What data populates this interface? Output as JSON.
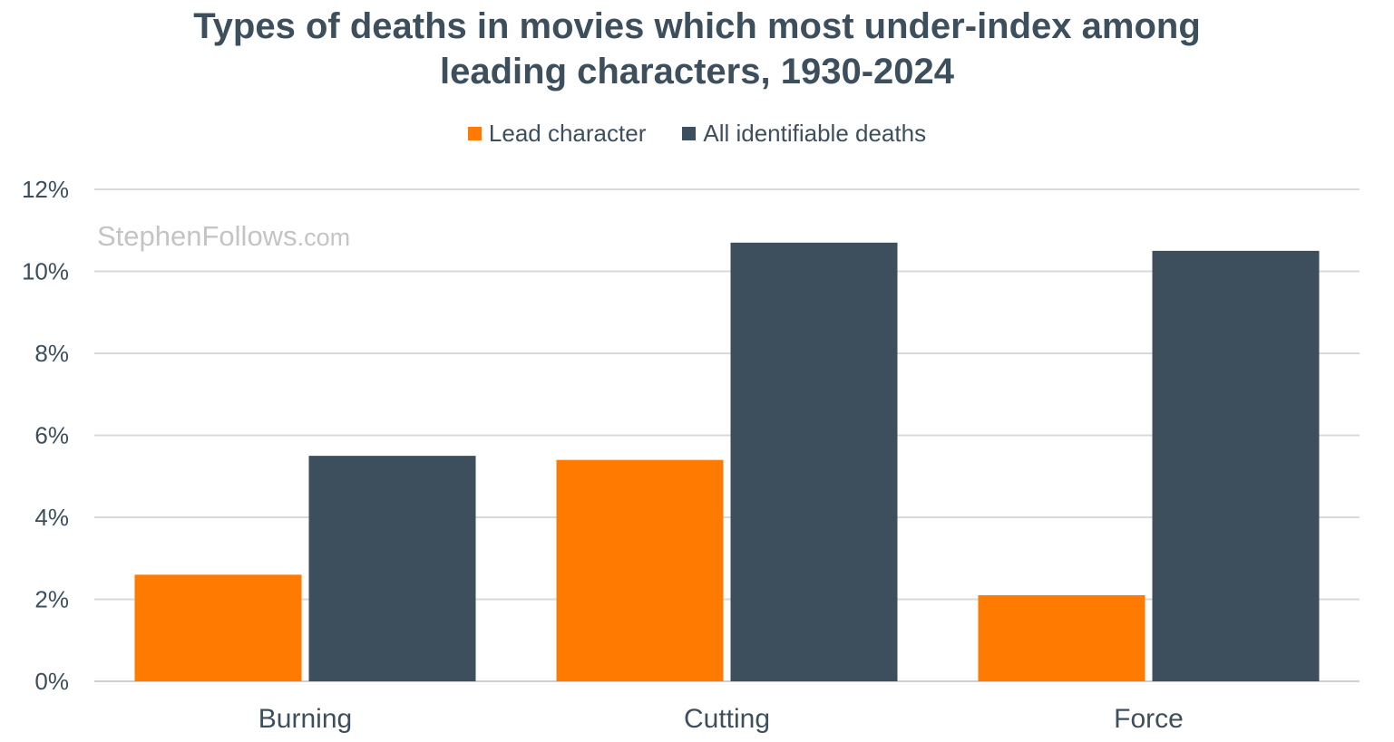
{
  "chart_data": {
    "type": "bar",
    "title_lines": [
      "Types of deaths in movies which most under-index among",
      "leading characters, 1930-2024"
    ],
    "categories": [
      "Burning",
      "Cutting",
      "Force"
    ],
    "series": [
      {
        "name": "Lead character",
        "color": "#ff7a00",
        "values": [
          2.6,
          5.4,
          2.1
        ]
      },
      {
        "name": "All identifiable deaths",
        "color": "#3d4f5c",
        "values": [
          5.5,
          10.7,
          10.5
        ]
      }
    ],
    "y_ticks": [
      "0%",
      "2%",
      "4%",
      "6%",
      "8%",
      "10%",
      "12%"
    ],
    "ylim": [
      0,
      12
    ],
    "grid": true,
    "legend_position": "top-center",
    "watermark": {
      "main": "StephenFollows",
      "suffix": ".com"
    }
  }
}
